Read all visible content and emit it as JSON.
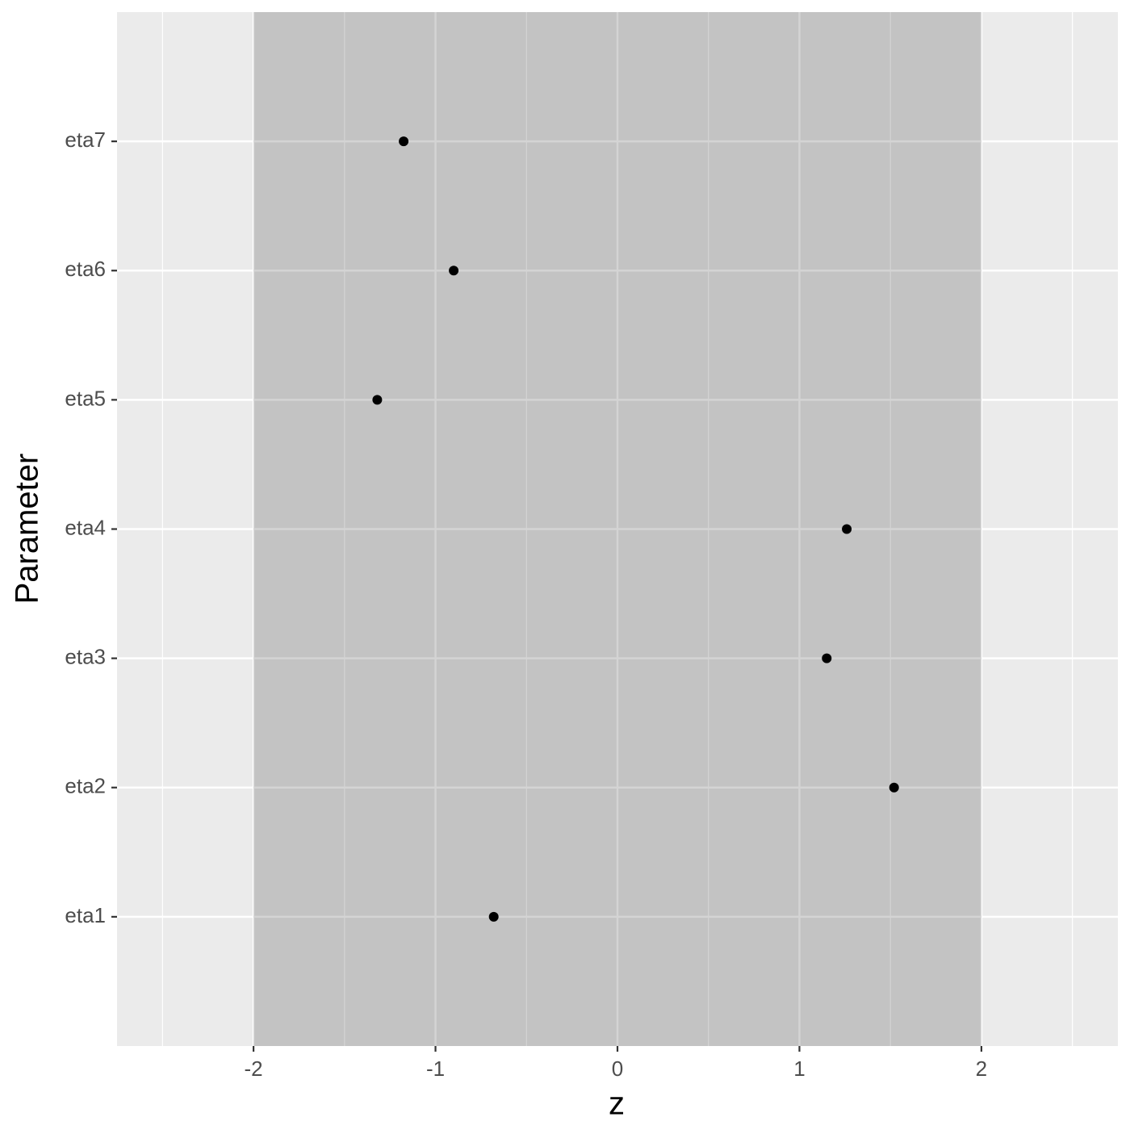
{
  "chart_data": {
    "type": "dot",
    "x_label": "z",
    "y_label": "Parameter",
    "categories": [
      "eta1",
      "eta2",
      "eta3",
      "eta4",
      "eta5",
      "eta6",
      "eta7"
    ],
    "values": [
      -0.68,
      1.52,
      1.15,
      1.26,
      -1.32,
      -0.9,
      -1.175
    ],
    "color": "#000000",
    "xlim": [
      -2.75,
      2.75
    ],
    "xticks": [
      -2,
      -1,
      0,
      1,
      2
    ],
    "minor_xticks": [
      -2.5,
      -1.5,
      -0.5,
      0.5,
      1.5,
      2.5
    ],
    "band": [
      -2,
      2
    ],
    "grid": true
  }
}
